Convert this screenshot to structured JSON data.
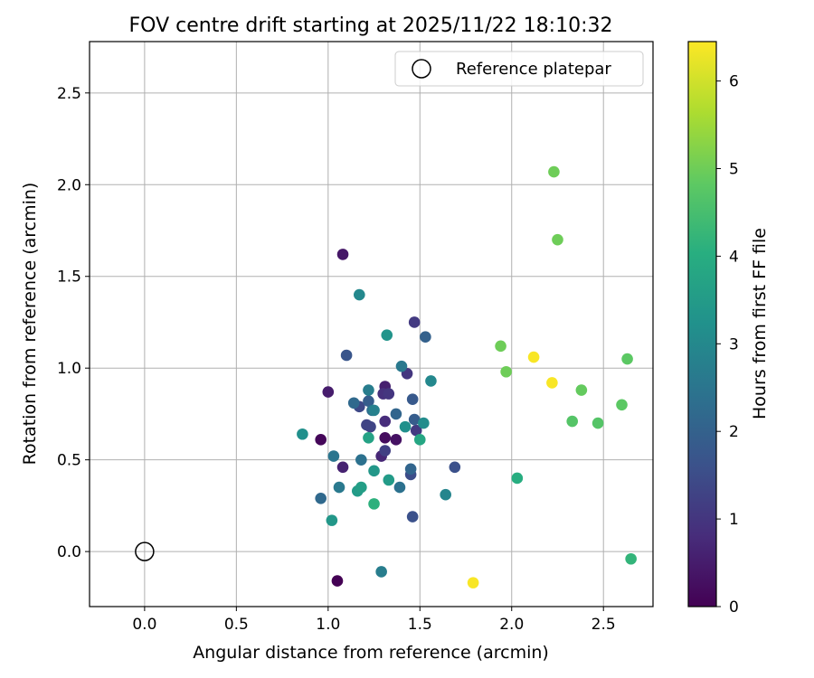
{
  "chart_data": {
    "type": "scatter",
    "title": "FOV centre drift starting at 2025/11/22 18:10:32",
    "xlabel": "Angular distance from reference (arcmin)",
    "ylabel": "Rotation from reference (arcmin)",
    "xlim": [
      -0.3,
      2.77
    ],
    "ylim": [
      -0.3,
      2.78
    ],
    "xticks": [
      "0.0",
      "0.5",
      "1.0",
      "1.5",
      "2.0",
      "2.5"
    ],
    "yticks": [
      "0.0",
      "0.5",
      "1.0",
      "1.5",
      "2.0",
      "2.5"
    ],
    "grid": true,
    "legend": {
      "placement": "top-right",
      "entries": [
        "Reference platepar"
      ]
    },
    "reference_point": {
      "x": 0.0,
      "y": 0.0,
      "marker": "open-circle"
    },
    "colorbar": {
      "label": "Hours from first FF file",
      "range": [
        0,
        6.45
      ],
      "ticks": [
        "0",
        "1",
        "2",
        "3",
        "4",
        "5",
        "6"
      ],
      "colormap": "viridis"
    },
    "points": [
      {
        "x": 1.05,
        "y": -0.16,
        "c": 0.0
      },
      {
        "x": 0.96,
        "y": 0.61,
        "c": 0.1
      },
      {
        "x": 1.31,
        "y": 0.62,
        "c": 0.2
      },
      {
        "x": 1.37,
        "y": 0.61,
        "c": 0.3
      },
      {
        "x": 1.08,
        "y": 1.62,
        "c": 0.4
      },
      {
        "x": 1.0,
        "y": 0.87,
        "c": 0.5
      },
      {
        "x": 1.31,
        "y": 0.9,
        "c": 0.55
      },
      {
        "x": 1.08,
        "y": 0.46,
        "c": 0.6
      },
      {
        "x": 1.29,
        "y": 0.52,
        "c": 0.7
      },
      {
        "x": 1.31,
        "y": 0.71,
        "c": 0.8
      },
      {
        "x": 1.3,
        "y": 0.86,
        "c": 0.9
      },
      {
        "x": 1.43,
        "y": 0.97,
        "c": 1.0
      },
      {
        "x": 1.33,
        "y": 0.86,
        "c": 1.0
      },
      {
        "x": 1.47,
        "y": 1.25,
        "c": 1.1
      },
      {
        "x": 1.48,
        "y": 0.66,
        "c": 1.1
      },
      {
        "x": 1.31,
        "y": 0.55,
        "c": 1.2
      },
      {
        "x": 1.21,
        "y": 0.69,
        "c": 1.3
      },
      {
        "x": 1.23,
        "y": 0.68,
        "c": 1.3
      },
      {
        "x": 1.17,
        "y": 0.79,
        "c": 1.4
      },
      {
        "x": 1.45,
        "y": 0.42,
        "c": 1.5
      },
      {
        "x": 1.46,
        "y": 0.19,
        "c": 1.6
      },
      {
        "x": 1.69,
        "y": 0.46,
        "c": 1.6
      },
      {
        "x": 1.1,
        "y": 1.07,
        "c": 1.7
      },
      {
        "x": 1.46,
        "y": 0.83,
        "c": 1.8
      },
      {
        "x": 1.22,
        "y": 0.82,
        "c": 1.9
      },
      {
        "x": 1.47,
        "y": 0.72,
        "c": 1.9
      },
      {
        "x": 1.53,
        "y": 1.17,
        "c": 2.0
      },
      {
        "x": 1.37,
        "y": 0.75,
        "c": 2.1
      },
      {
        "x": 1.45,
        "y": 0.45,
        "c": 2.1
      },
      {
        "x": 1.14,
        "y": 0.81,
        "c": 2.2
      },
      {
        "x": 0.96,
        "y": 0.29,
        "c": 2.2
      },
      {
        "x": 1.24,
        "y": 0.77,
        "c": 2.3
      },
      {
        "x": 1.39,
        "y": 0.35,
        "c": 2.4
      },
      {
        "x": 1.18,
        "y": 0.5,
        "c": 2.4
      },
      {
        "x": 1.03,
        "y": 0.52,
        "c": 2.5
      },
      {
        "x": 1.4,
        "y": 1.01,
        "c": 2.6
      },
      {
        "x": 1.06,
        "y": 0.35,
        "c": 2.6
      },
      {
        "x": 1.29,
        "y": -0.11,
        "c": 2.7
      },
      {
        "x": 1.22,
        "y": 0.88,
        "c": 2.7
      },
      {
        "x": 1.25,
        "y": 0.77,
        "c": 2.8
      },
      {
        "x": 1.64,
        "y": 0.31,
        "c": 2.9
      },
      {
        "x": 1.56,
        "y": 0.93,
        "c": 3.0
      },
      {
        "x": 1.17,
        "y": 1.4,
        "c": 3.0
      },
      {
        "x": 1.52,
        "y": 0.7,
        "c": 3.1
      },
      {
        "x": 0.86,
        "y": 0.64,
        "c": 3.2
      },
      {
        "x": 1.42,
        "y": 0.68,
        "c": 3.2
      },
      {
        "x": 1.32,
        "y": 1.18,
        "c": 3.3
      },
      {
        "x": 1.25,
        "y": 0.44,
        "c": 3.4
      },
      {
        "x": 1.02,
        "y": 0.17,
        "c": 3.4
      },
      {
        "x": 1.33,
        "y": 0.39,
        "c": 3.5
      },
      {
        "x": 1.16,
        "y": 0.33,
        "c": 3.5
      },
      {
        "x": 1.18,
        "y": 0.35,
        "c": 3.6
      },
      {
        "x": 1.22,
        "y": 0.62,
        "c": 3.7
      },
      {
        "x": 1.5,
        "y": 0.61,
        "c": 3.8
      },
      {
        "x": 2.03,
        "y": 0.4,
        "c": 4.0
      },
      {
        "x": 1.25,
        "y": 0.26,
        "c": 4.1
      },
      {
        "x": 2.65,
        "y": -0.04,
        "c": 4.2
      },
      {
        "x": 2.33,
        "y": 0.71,
        "c": 4.7
      },
      {
        "x": 2.47,
        "y": 0.7,
        "c": 4.7
      },
      {
        "x": 2.6,
        "y": 0.8,
        "c": 4.8
      },
      {
        "x": 2.63,
        "y": 1.05,
        "c": 4.8
      },
      {
        "x": 2.38,
        "y": 0.88,
        "c": 4.9
      },
      {
        "x": 1.94,
        "y": 1.12,
        "c": 5.0
      },
      {
        "x": 1.97,
        "y": 0.98,
        "c": 5.0
      },
      {
        "x": 2.25,
        "y": 1.7,
        "c": 5.0
      },
      {
        "x": 2.23,
        "y": 2.07,
        "c": 5.0
      },
      {
        "x": 2.12,
        "y": 1.06,
        "c": 6.4
      },
      {
        "x": 2.22,
        "y": 0.92,
        "c": 6.4
      },
      {
        "x": 1.79,
        "y": -0.17,
        "c": 6.4
      }
    ]
  }
}
